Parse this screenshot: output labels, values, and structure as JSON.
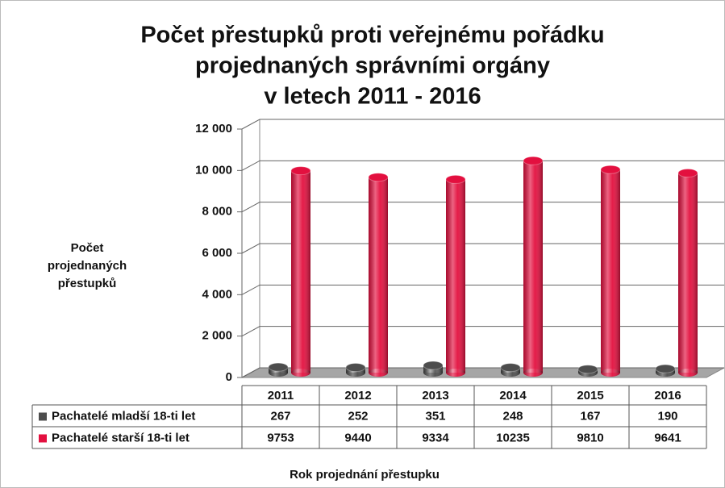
{
  "chart_data": {
    "type": "bar3d",
    "title": [
      "Počet přestupků proti veřejnému pořádku",
      "projednaných správními orgány",
      "v letech 2011 - 2016"
    ],
    "y_label": [
      "Počet",
      "projednaných",
      "přestupků"
    ],
    "x_label": "Rok projednání přestupku",
    "categories": [
      "2011",
      "2012",
      "2013",
      "2014",
      "2015",
      "2016"
    ],
    "series": [
      {
        "name": "Pachatelé mladší 18-ti let",
        "color": "#4d4d4d",
        "values": [
          267,
          252,
          351,
          248,
          167,
          190
        ]
      },
      {
        "name": "Pachatelé starší 18-ti let",
        "color": "#e3103f",
        "values": [
          9753,
          9440,
          9334,
          10235,
          9810,
          9641
        ]
      }
    ],
    "ylim": [
      0,
      12000
    ],
    "yticks": [
      0,
      {
        "value": 2000,
        "label": "2 000"
      },
      {
        "value": 4000,
        "label": "4 000"
      },
      {
        "value": 6000,
        "label": "6 000"
      },
      {
        "value": 8000,
        "label": "8 000"
      },
      {
        "value": 10000,
        "label": "10 000"
      },
      {
        "value": 12000,
        "label": "12 000"
      }
    ],
    "grid": true,
    "data_table": true
  }
}
